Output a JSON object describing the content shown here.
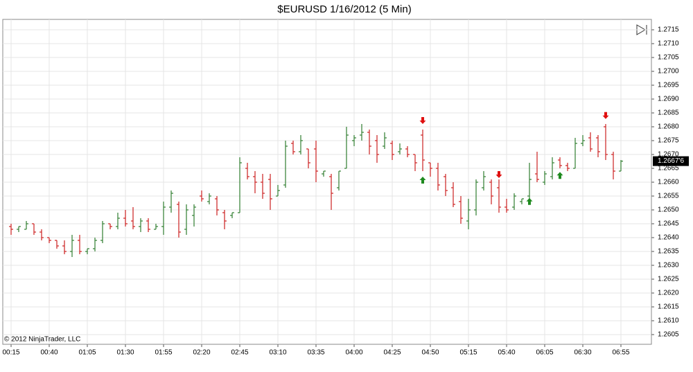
{
  "chart_data": {
    "type": "ohlc",
    "title": "$EURUSD  1/16/2012 (5 Min)",
    "copyright": "© 2012 NinjaTrader, LLC",
    "x": [
      "00:15",
      null,
      null,
      null,
      null,
      "00:40",
      null,
      null,
      null,
      null,
      "01:05",
      null,
      null,
      null,
      null,
      "01:30",
      null,
      null,
      null,
      null,
      "01:55",
      null,
      null,
      null,
      null,
      "02:20",
      null,
      null,
      null,
      null,
      "02:45",
      null,
      null,
      null,
      null,
      "03:10",
      null,
      null,
      null,
      null,
      "03:35",
      null,
      null,
      null,
      null,
      "04:00",
      null,
      null,
      null,
      null,
      "04:25",
      null,
      null,
      null,
      null,
      "04:50",
      null,
      null,
      null,
      null,
      "05:15",
      null,
      null,
      null,
      null,
      "05:40",
      null,
      null,
      null,
      null,
      "06:05",
      null,
      null,
      null,
      null,
      "06:30",
      null,
      null,
      null,
      null,
      "06:55"
    ],
    "open": [
      1.2644,
      1.2643,
      1.2643,
      1.2645,
      1.2642,
      1.264,
      1.2639,
      1.2637,
      1.2635,
      1.2639,
      1.2635,
      1.2636,
      1.2639,
      1.2645,
      1.2644,
      1.2647,
      1.2646,
      1.2644,
      1.2646,
      1.2643,
      1.2644,
      1.2651,
      1.2652,
      1.2643,
      1.2648,
      1.2655,
      1.2653,
      1.2654,
      1.2649,
      1.2648,
      1.2649,
      1.2665,
      1.2662,
      1.266,
      1.2661,
      1.2655,
      1.2659,
      1.2674,
      1.2671,
      1.2672,
      1.2672,
      1.2663,
      1.2662,
      1.2658,
      1.2665,
      1.2675,
      1.2677,
      1.2678,
      1.2675,
      1.2673,
      1.2674,
      1.2671,
      1.2672,
      1.267,
      1.2677,
      1.2667,
      1.2665,
      1.2662,
      1.2658,
      1.2653,
      1.2646,
      1.265,
      1.2658,
      1.266,
      1.2658,
      1.2651,
      1.2651,
      1.2653,
      1.2655,
      1.2663,
      1.266,
      1.2662,
      1.2668,
      1.2666,
      1.2665,
      1.2674,
      1.2676,
      1.2676,
      1.268,
      1.267,
      1.2664
    ],
    "high": [
      1.2645,
      1.2644,
      1.2646,
      1.2645,
      1.2643,
      1.264,
      1.2639,
      1.2639,
      1.2641,
      1.2641,
      1.2636,
      1.264,
      1.2646,
      1.2645,
      1.2649,
      1.265,
      1.2651,
      1.2647,
      1.2647,
      1.2645,
      1.2653,
      1.2657,
      1.2653,
      1.2652,
      1.2652,
      1.2657,
      1.2656,
      1.2655,
      1.265,
      1.2649,
      1.2669,
      1.2667,
      1.2664,
      1.2663,
      1.2663,
      1.2659,
      1.2675,
      1.2675,
      1.2677,
      1.2672,
      1.2675,
      1.2664,
      1.2663,
      1.2664,
      1.268,
      1.2677,
      1.2681,
      1.2679,
      1.2677,
      1.2678,
      1.2675,
      1.2674,
      1.2673,
      1.267,
      1.2679,
      1.2667,
      1.2667,
      1.2663,
      1.266,
      1.2655,
      1.2654,
      1.2661,
      1.2664,
      1.2661,
      1.2661,
      1.2654,
      1.2656,
      1.2654,
      1.2667,
      1.2671,
      1.2664,
      1.2669,
      1.2669,
      1.2667,
      1.2676,
      1.2677,
      1.2678,
      1.2677,
      1.2681,
      1.2671,
      1.2668
    ],
    "low": [
      1.2641,
      1.2642,
      1.2643,
      1.2641,
      1.2639,
      1.2638,
      1.2636,
      1.2634,
      1.2633,
      1.2634,
      1.2634,
      1.2635,
      1.2638,
      1.2643,
      1.2643,
      1.2644,
      1.2643,
      1.2642,
      1.2642,
      1.2643,
      1.2641,
      1.2649,
      1.264,
      1.2641,
      1.2644,
      1.2653,
      1.2652,
      1.2648,
      1.2643,
      1.2647,
      1.2649,
      1.2661,
      1.2656,
      1.2654,
      1.265,
      1.2655,
      1.2658,
      1.267,
      1.267,
      1.2665,
      1.266,
      1.2662,
      1.265,
      1.2657,
      1.2665,
      1.2673,
      1.2675,
      1.267,
      1.2667,
      1.2672,
      1.2668,
      1.267,
      1.2669,
      1.2664,
      1.2664,
      1.2662,
      1.2657,
      1.2655,
      1.2651,
      1.2645,
      1.2643,
      1.2648,
      1.2657,
      1.2652,
      1.2649,
      1.2649,
      1.265,
      1.2652,
      1.2654,
      1.266,
      1.2659,
      1.2661,
      1.2665,
      1.2664,
      1.2665,
      1.2673,
      1.2671,
      1.2669,
      1.2668,
      1.2661,
      1.2664
    ],
    "close": [
      1.2643,
      1.2644,
      1.2645,
      1.2642,
      1.264,
      1.2639,
      1.2637,
      1.2635,
      1.2639,
      1.2635,
      1.2636,
      1.2639,
      1.2645,
      1.2644,
      1.2647,
      1.2645,
      1.2644,
      1.2646,
      1.2643,
      1.2644,
      1.2651,
      1.2656,
      1.2642,
      1.265,
      1.2651,
      1.2654,
      1.2655,
      1.265,
      1.2646,
      1.2649,
      1.2667,
      1.2662,
      1.266,
      1.2656,
      1.2654,
      1.2657,
      1.2673,
      1.2671,
      1.2675,
      1.2667,
      1.2664,
      1.2664,
      1.2656,
      1.2664,
      1.2677,
      1.2676,
      1.2678,
      1.2673,
      1.267,
      1.2676,
      1.267,
      1.2672,
      1.267,
      1.2667,
      1.2668,
      1.2665,
      1.2659,
      1.2657,
      1.2652,
      1.2647,
      1.265,
      1.266,
      1.2662,
      1.2655,
      1.2651,
      1.265,
      1.2655,
      1.2654,
      1.2661,
      1.2661,
      1.2663,
      1.2667,
      1.2666,
      1.2665,
      1.2674,
      1.2675,
      1.2672,
      1.2671,
      1.267,
      1.2664,
      1.26676
    ],
    "up_color": "#2f7d2f",
    "down_color": "#cc1f1f",
    "ylim": [
      1.26015,
      1.271875
    ],
    "yticks": [
      1.2605,
      {
        "value": 1.261,
        "label": "1.2610"
      },
      1.2615,
      {
        "value": 1.262,
        "label": "1.2620"
      },
      1.2625,
      {
        "value": 1.263,
        "label": "1.2630"
      },
      1.2635,
      {
        "value": 1.264,
        "label": "1.2640"
      },
      1.2645,
      {
        "value": 1.265,
        "label": "1.2650"
      },
      1.2655,
      {
        "value": 1.266,
        "label": "1.2660"
      },
      1.2665,
      {
        "value": 1.267,
        "label": "1.2670"
      },
      1.2675,
      {
        "value": 1.268,
        "label": "1.2680"
      },
      1.2685,
      {
        "value": 1.269,
        "label": "1.2690"
      },
      1.2695,
      {
        "value": 1.27,
        "label": "1.2700"
      },
      1.2705,
      {
        "value": 1.271,
        "label": "1.2710"
      },
      1.2715
    ],
    "grid": true,
    "last_price": {
      "value": 1.26676,
      "label": "1.2667'6"
    },
    "signals": [
      {
        "bar": 54,
        "price": 1.2682,
        "direction": "down",
        "color": "#e01010"
      },
      {
        "bar": 54,
        "price": 1.2661,
        "direction": "up",
        "color": "#1f8a1f"
      },
      {
        "bar": 64,
        "price": 1.26625,
        "direction": "down",
        "color": "#e01010"
      },
      {
        "bar": 68,
        "price": 1.26533,
        "direction": "up",
        "color": "#1f8a1f"
      },
      {
        "bar": 72,
        "price": 1.26627,
        "direction": "up",
        "color": "#1f8a1f"
      },
      {
        "bar": 78,
        "price": 1.26838,
        "direction": "down",
        "color": "#e01010"
      }
    ]
  }
}
